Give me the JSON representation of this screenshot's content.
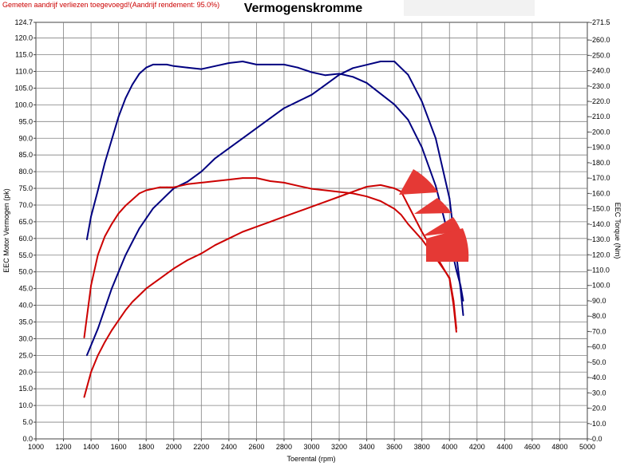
{
  "chart_data": {
    "type": "line",
    "title": "Vermogenskromme",
    "note": "Gemeten aandrijf verliezen toegevoegd!(Aandrijf rendement: 95.0%)",
    "xlabel": "Toerental (rpm)",
    "ylabel_left": "EEC Motor Vermogen (pk)",
    "ylabel_right": "EEC Torque (Nm)",
    "xlim": [
      1000,
      5000
    ],
    "ylim_left": [
      0,
      124.7
    ],
    "ylim_right": [
      0,
      271.5
    ],
    "grid": true,
    "x_ticks": [
      "1000",
      "1200",
      "1400",
      "1600",
      "1800",
      "2000",
      "2200",
      "2400",
      "2600",
      "2800",
      "3000",
      "3200",
      "3400",
      "3600",
      "3800",
      "4000",
      "4200",
      "4400",
      "4600",
      "4800",
      "5000"
    ],
    "y_left_ticks": [
      "124.7",
      "120.0",
      "115.0",
      "110.0",
      "105.0",
      "100.0",
      "95.0",
      "90.0",
      "85.0",
      "80.0",
      "75.0",
      "70.0",
      "65.0",
      "60.0",
      "55.0",
      "50.0",
      "45.0",
      "40.0",
      "35.0",
      "30.0",
      "25.0",
      "20.0",
      "15.0",
      "10.0",
      "5.0",
      "0.0"
    ],
    "y_right_ticks": [
      "271.5",
      "260.0",
      "250.0",
      "240.0",
      "230.0",
      "220.0",
      "210.0",
      "200.0",
      "190.0",
      "180.0",
      "170.0",
      "160.0",
      "150.0",
      "140.0",
      "130.0",
      "120.0",
      "110.0",
      "100.0",
      "90.0",
      "80.0",
      "70.0",
      "60.0",
      "50.0",
      "40.0",
      "30.0",
      "20.0",
      "10.0",
      "0.0"
    ],
    "series": [
      {
        "axis": "left",
        "color": "#000080",
        "x": [
          1370,
          1400,
          1450,
          1500,
          1550,
          1600,
          1650,
          1700,
          1750,
          1800,
          1850,
          1900,
          1950,
          2000,
          2100,
          2200,
          2300,
          2400,
          2500,
          2600,
          2700,
          2800,
          2900,
          3000,
          3100,
          3200,
          3300,
          3400,
          3500,
          3600,
          3700,
          3800,
          3900,
          4000,
          4050,
          4080,
          4100
        ],
        "values": [
          25,
          28,
          33,
          39,
          45,
          50,
          55,
          59,
          63,
          66,
          69,
          71,
          73,
          75,
          77,
          80,
          84,
          87,
          90,
          93,
          96,
          99,
          101,
          103,
          106,
          109,
          111,
          112,
          113,
          113,
          109,
          101,
          90,
          72,
          55,
          45,
          37
        ]
      },
      {
        "axis": "right",
        "color": "#000080",
        "x": [
          1370,
          1400,
          1450,
          1500,
          1550,
          1600,
          1650,
          1700,
          1750,
          1800,
          1850,
          1900,
          1950,
          2000,
          2100,
          2200,
          2300,
          2400,
          2500,
          2600,
          2700,
          2800,
          2900,
          3000,
          3100,
          3200,
          3300,
          3400,
          3500,
          3600,
          3700,
          3800,
          3900,
          4000,
          4050,
          4080,
          4100
        ],
        "values": [
          130,
          145,
          162,
          180,
          195,
          210,
          222,
          231,
          238,
          242,
          244,
          244,
          244,
          243,
          242,
          241,
          243,
          245,
          246,
          244,
          244,
          244,
          242,
          239,
          237,
          238,
          236,
          232,
          225,
          218,
          208,
          190,
          165,
          130,
          110,
          100,
          90
        ]
      },
      {
        "axis": "left",
        "color": "#cc0000",
        "x": [
          1350,
          1400,
          1450,
          1500,
          1550,
          1600,
          1650,
          1700,
          1750,
          1800,
          1850,
          1900,
          1950,
          2000,
          2100,
          2200,
          2300,
          2400,
          2500,
          2600,
          2700,
          2800,
          2900,
          3000,
          3100,
          3200,
          3300,
          3400,
          3500,
          3600,
          3650,
          3700,
          3800,
          3900,
          4000,
          4030,
          4050
        ],
        "values": [
          12.5,
          20,
          25,
          29,
          32.5,
          35.5,
          38.5,
          41,
          43,
          45,
          46.5,
          48,
          49.5,
          51,
          53.5,
          55.5,
          58,
          60,
          62,
          63.5,
          65,
          66.5,
          68,
          69.5,
          71,
          72.5,
          74,
          75.5,
          76,
          75,
          74,
          70,
          62,
          55,
          48,
          40,
          32
        ]
      },
      {
        "axis": "right",
        "color": "#cc0000",
        "x": [
          1350,
          1400,
          1450,
          1500,
          1550,
          1600,
          1650,
          1700,
          1750,
          1800,
          1850,
          1900,
          1950,
          2000,
          2100,
          2200,
          2300,
          2400,
          2500,
          2600,
          2700,
          2800,
          2900,
          3000,
          3100,
          3200,
          3300,
          3400,
          3500,
          3600,
          3650,
          3700,
          3800,
          3900,
          4000,
          4030,
          4050
        ],
        "values": [
          66,
          100,
          120,
          132,
          140,
          147,
          152,
          156,
          160,
          162,
          163,
          164,
          164,
          164,
          166,
          167,
          168,
          169,
          170,
          170,
          168,
          167,
          165,
          163,
          162,
          161,
          160,
          158,
          155,
          150,
          146,
          140,
          130,
          118,
          105,
          90,
          72
        ]
      }
    ]
  }
}
